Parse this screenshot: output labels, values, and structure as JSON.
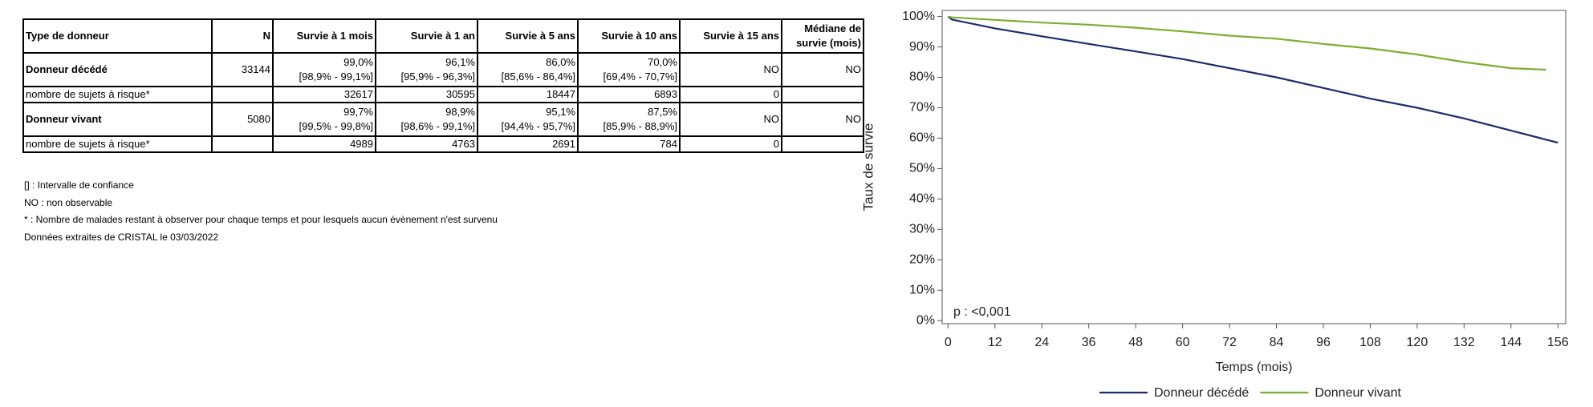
{
  "table": {
    "header": [
      "Type de donneur",
      "N",
      "Survie à 1 mois",
      "Survie à 1 an",
      "Survie à 5 ans",
      "Survie à 10 ans",
      "Survie à 15 ans",
      "Médiane de survie (mois)"
    ],
    "rows": [
      [
        "Donneur décédé",
        "33144",
        {
          "value": "99,0%",
          "ci": "[98,9% - 99,1%]"
        },
        {
          "value": "96,1%",
          "ci": "[95,9% - 96,3%]"
        },
        {
          "value": "86,0%",
          "ci": "[85,6% - 86,4%]"
        },
        {
          "value": "70,0%",
          "ci": "[69,4% - 70,7%]"
        },
        "NO",
        "NO"
      ],
      [
        "nombre de sujets à risque*",
        null,
        "32617",
        "30595",
        "18447",
        "6893",
        "0",
        null
      ],
      [
        "Donneur vivant",
        "5080",
        {
          "value": "99,7%",
          "ci": "[99,5% - 99,8%]"
        },
        {
          "value": "98,9%",
          "ci": "[98,6% - 99,1%]"
        },
        {
          "value": "95,1%",
          "ci": "[94,4% - 95,7%]"
        },
        {
          "value": "87,5%",
          "ci": "[85,9% - 88,9%]"
        },
        "NO",
        "NO"
      ],
      [
        "nombre de sujets à risque*",
        null,
        "4989",
        "4763",
        "2691",
        "784",
        "0",
        null
      ]
    ]
  },
  "notes": [
    "[] : Intervalle de confiance",
    "NO : non observable",
    "* : Nombre de malades restant à observer pour chaque temps et pour lesquels aucun évènement n'est survenu",
    "Données extraites de CRISTAL le 03/03/2022"
  ],
  "chart_data": {
    "type": "line",
    "x_label": "Temps (mois)",
    "y_label": "Taux de survie",
    "annotation": "p : <0,001",
    "x": [
      0,
      1,
      12,
      24,
      36,
      48,
      60,
      72,
      84,
      96,
      108,
      120,
      132,
      144,
      153,
      156
    ],
    "series": [
      {
        "name": "Donneur décédé",
        "color": "#1f2a6b",
        "values": [
          100,
          99,
          96.1,
          93.5,
          91,
          88.5,
          86,
          83,
          80,
          76.5,
          73,
          70,
          66.5,
          62.5,
          59.5,
          58.5
        ]
      },
      {
        "name": "Donneur vivant",
        "color": "#7cae2e",
        "values": [
          100,
          99.7,
          98.9,
          98,
          97.3,
          96.3,
          95.1,
          93.7,
          92.7,
          91,
          89.5,
          87.5,
          85,
          83,
          82.5,
          null
        ]
      }
    ],
    "xlim": [
      -1.5,
      158
    ],
    "ylim": [
      -1,
      102
    ],
    "xticks": [
      0,
      12,
      24,
      36,
      48,
      60,
      72,
      84,
      96,
      108,
      120,
      132,
      144,
      156
    ],
    "yticks": [
      {
        "value": 0,
        "label": "0%"
      },
      {
        "value": 10,
        "label": "10%"
      },
      {
        "value": 20,
        "label": "20%"
      },
      {
        "value": 30,
        "label": "30%"
      },
      {
        "value": 40,
        "label": "40%"
      },
      {
        "value": 50,
        "label": "50%"
      },
      {
        "value": 60,
        "label": "60%"
      },
      {
        "value": 70,
        "label": "70%"
      },
      {
        "value": 80,
        "label": "80%"
      },
      {
        "value": 90,
        "label": "90%"
      },
      {
        "value": 100,
        "label": "100%"
      }
    ],
    "grid": false,
    "legend": "bottom"
  }
}
